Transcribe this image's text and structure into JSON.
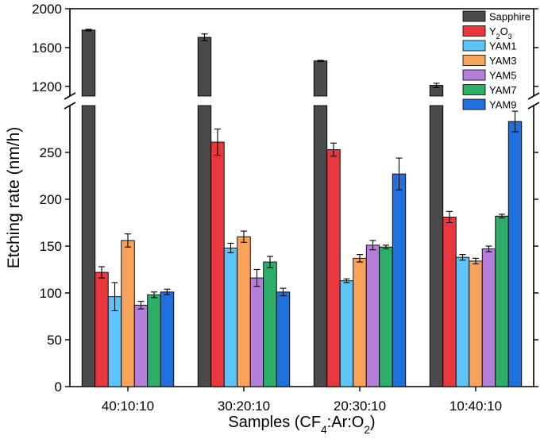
{
  "chart_data": {
    "type": "bar",
    "xlabel": "Samples (CF₄:Ar:O₂)",
    "ylabel": "Etching rate (nm/h)",
    "categories": [
      "40:10:10",
      "30:20:10",
      "20:30:10",
      "10:40:10"
    ],
    "y_axis_break": {
      "lower_range": [
        0,
        300
      ],
      "upper_range": [
        1100,
        2000
      ],
      "lower_ticks": [
        0,
        50,
        100,
        150,
        200,
        250
      ],
      "upper_ticks": [
        1200,
        1600,
        2000
      ]
    },
    "legend": {
      "placement": "top-right"
    },
    "series": [
      {
        "name": "Sapphire",
        "color": "#4a4a4a",
        "values": [
          1780,
          1705,
          1462,
          1210
        ],
        "errors": [
          8,
          35,
          6,
          22
        ]
      },
      {
        "name": "Y₂O₃",
        "color": "#e8383d",
        "values": [
          122,
          261,
          253,
          181
        ],
        "errors": [
          6,
          14,
          7,
          6
        ]
      },
      {
        "name": "YAM1",
        "color": "#5ec4f7",
        "values": [
          96,
          148,
          113,
          138
        ],
        "errors": [
          15,
          5,
          2,
          3
        ]
      },
      {
        "name": "YAM3",
        "color": "#f7a35c",
        "values": [
          156,
          160,
          137,
          134
        ],
        "errors": [
          7,
          6,
          4,
          3
        ]
      },
      {
        "name": "YAM5",
        "color": "#b37fd9",
        "values": [
          87,
          116,
          151,
          147
        ],
        "errors": [
          4,
          9,
          5,
          3
        ]
      },
      {
        "name": "YAM7",
        "color": "#2fae6a",
        "values": [
          98,
          133,
          149,
          182
        ],
        "errors": [
          3,
          6,
          2,
          2
        ]
      },
      {
        "name": "YAM9",
        "color": "#1f6fde",
        "values": [
          101,
          101,
          227,
          283
        ],
        "errors": [
          3,
          4,
          17,
          11
        ]
      }
    ]
  }
}
